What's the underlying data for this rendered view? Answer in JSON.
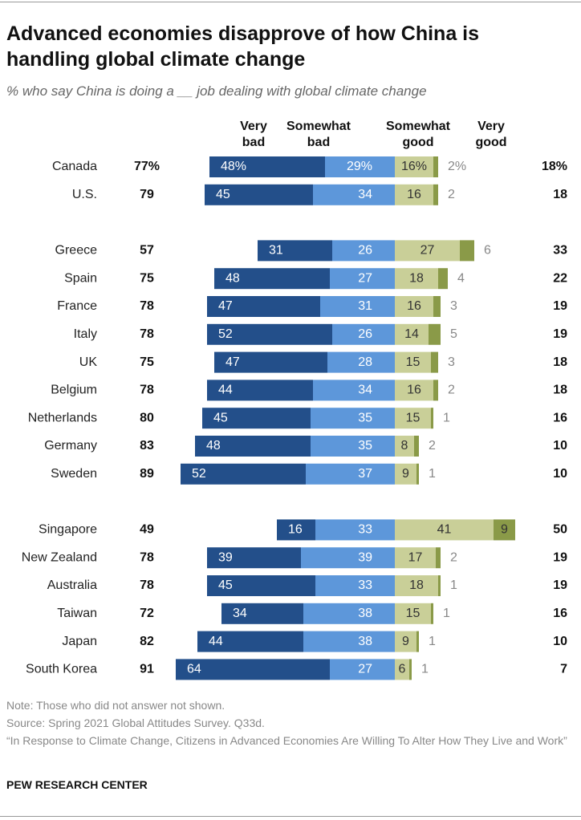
{
  "chart_data": {
    "type": "diverging-bar",
    "title": "Advanced economies disapprove of how China is handling global climate change",
    "subtitle": "% who say China is doing a __ job dealing with global climate change",
    "categories": [
      "Canada",
      "U.S.",
      null,
      "Greece",
      "Spain",
      "France",
      "Italy",
      "UK",
      "Belgium",
      "Netherlands",
      "Germany",
      "Sweden",
      null,
      "Singapore",
      "New Zealand",
      "Australia",
      "Taiwan",
      "Japan",
      "South Korea"
    ],
    "series": [
      {
        "name": "Very bad",
        "color": "#234f8a",
        "values": [
          48,
          45,
          null,
          31,
          48,
          47,
          52,
          47,
          44,
          45,
          48,
          52,
          null,
          16,
          39,
          45,
          34,
          44,
          64
        ],
        "value_labels": [
          "48%",
          "45",
          null,
          "31",
          "48",
          "47",
          "52",
          "47",
          "44",
          "45",
          "48",
          "52",
          null,
          "16",
          "39",
          "45",
          "34",
          "44",
          "64"
        ]
      },
      {
        "name": "Somewhat bad",
        "color": "#5d97da",
        "values": [
          29,
          34,
          null,
          26,
          27,
          31,
          26,
          28,
          34,
          35,
          35,
          37,
          null,
          33,
          39,
          33,
          38,
          38,
          27
        ],
        "value_labels": [
          "29%",
          "34",
          null,
          "26",
          "27",
          "31",
          "26",
          "28",
          "34",
          "35",
          "35",
          "37",
          null,
          "33",
          "39",
          "33",
          "38",
          "38",
          "27"
        ]
      },
      {
        "name": "Somewhat good",
        "color": "#c9cf98",
        "values": [
          16,
          16,
          null,
          27,
          18,
          16,
          14,
          15,
          16,
          15,
          8,
          9,
          null,
          41,
          17,
          18,
          15,
          9,
          6
        ],
        "value_labels": [
          "16%",
          "16",
          null,
          "27",
          "18",
          "16",
          "14",
          "15",
          "16",
          "15",
          "8",
          "9",
          null,
          "41",
          "17",
          "18",
          "15",
          "9",
          "6"
        ]
      },
      {
        "name": "Very good",
        "color": "#8a9a48",
        "values": [
          2,
          2,
          null,
          6,
          4,
          3,
          5,
          3,
          2,
          1,
          2,
          1,
          null,
          9,
          2,
          1,
          1,
          1,
          1
        ],
        "value_labels": [
          "2%",
          "2",
          null,
          "6",
          "4",
          "3",
          "5",
          "3",
          "2",
          "1",
          "2",
          "1",
          null,
          "9",
          "2",
          "1",
          "1",
          "1",
          "1"
        ]
      }
    ],
    "totals": {
      "bad": {
        "values": [
          77,
          79,
          null,
          57,
          75,
          78,
          78,
          75,
          78,
          80,
          83,
          89,
          null,
          49,
          78,
          78,
          72,
          82,
          91
        ],
        "value_labels": [
          "77%",
          "79",
          null,
          "57",
          "75",
          "78",
          "78",
          "75",
          "78",
          "80",
          "83",
          "89",
          null,
          "49",
          "78",
          "78",
          "72",
          "82",
          "91"
        ]
      },
      "good": {
        "values": [
          18,
          18,
          null,
          33,
          22,
          19,
          19,
          18,
          18,
          16,
          10,
          10,
          null,
          50,
          19,
          19,
          16,
          10,
          7
        ],
        "value_labels": [
          "18%",
          "18",
          null,
          "33",
          "22",
          "19",
          "19",
          "18",
          "18",
          "16",
          "10",
          "10",
          null,
          "50",
          "19",
          "19",
          "16",
          "10",
          "7"
        ]
      }
    },
    "notes": [
      "Note: Those who did not answer not shown.",
      "Source: Spring 2021 Global Attitudes Survey. Q33d.",
      "“In Response to Climate Change, Citizens in Advanced Economies Are Willing To Alter How They Live and Work”"
    ],
    "source_org": "PEW RESEARCH CENTER"
  }
}
